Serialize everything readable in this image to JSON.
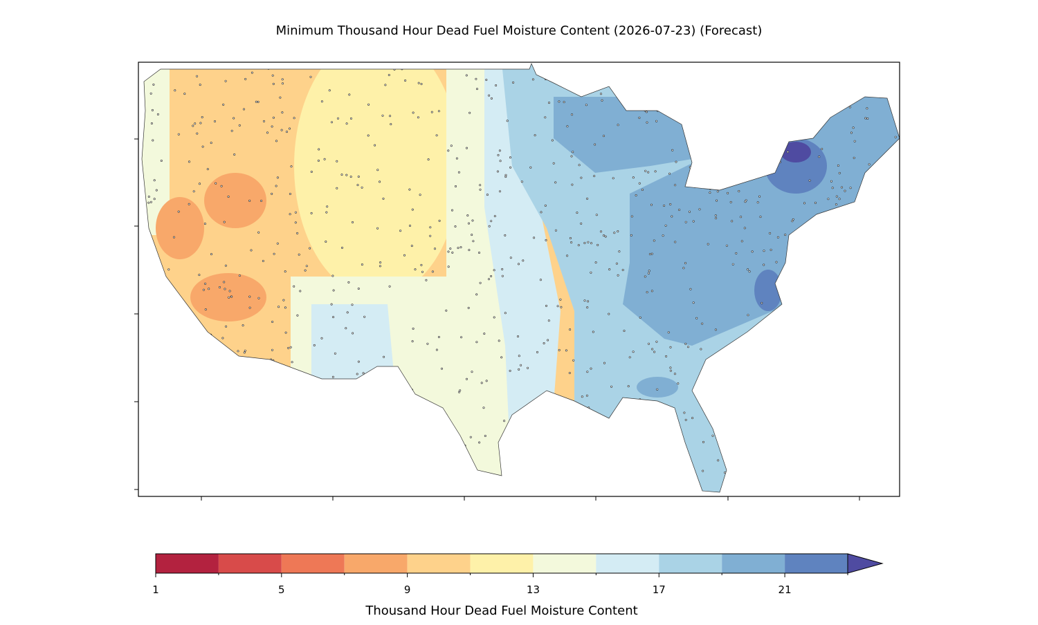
{
  "title": "Minimum Thousand Hour Dead Fuel Moisture Content (2026-07-23) (Forecast)",
  "colorbar": {
    "label": "Thousand Hour Dead Fuel Moisture Content",
    "levels": [
      1,
      3,
      5,
      7,
      9,
      11,
      13,
      15,
      17,
      19,
      21,
      23
    ],
    "colors": [
      "#b3223f",
      "#d84b4a",
      "#ee7856",
      "#f8a86a",
      "#fed28b",
      "#fef1a9",
      "#f3f9dc",
      "#d4ecf4",
      "#aad3e6",
      "#80afd3",
      "#5f83bf"
    ],
    "extend_color": "#4f4ba1",
    "ticks": [
      1,
      5,
      9,
      13,
      17,
      21
    ]
  }
}
